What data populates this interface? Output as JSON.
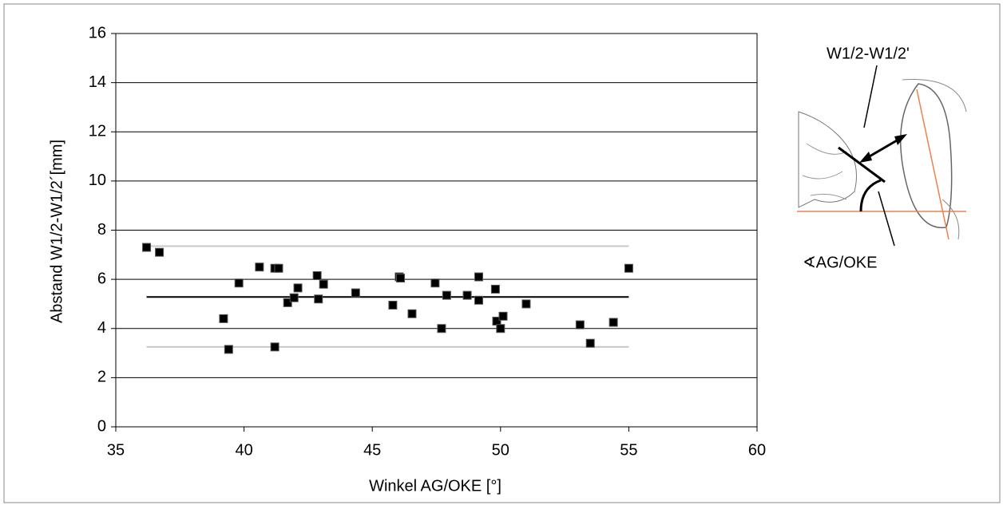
{
  "chart_data": {
    "type": "scatter",
    "x_label": "Winkel AG/OKE [°]",
    "y_label": "Abstand W1/2-W1/2´[mm]",
    "xlim": [
      35,
      60
    ],
    "xticks": [
      35,
      40,
      45,
      50,
      55,
      60
    ],
    "ylim": [
      0,
      16
    ],
    "yticks": [
      0,
      2,
      4,
      6,
      8,
      10,
      12,
      14,
      16
    ],
    "grid": true,
    "series": [
      {
        "color": "#000000",
        "x": [
          36.2,
          36.7,
          39.2,
          39.4,
          39.8,
          40.6,
          41.2,
          41.35,
          41.2,
          41.7,
          41.95,
          42.1,
          42.85,
          42.9,
          43.1,
          44.35,
          45.8,
          46.05,
          46.1,
          46.55,
          47.45,
          47.7,
          47.9,
          48.7,
          49.15,
          49.15,
          49.8,
          49.85,
          50.0,
          50.1,
          51.0,
          53.1,
          53.5,
          54.4,
          55.0
        ],
        "values": [
          7.3,
          7.1,
          4.4,
          3.15,
          5.85,
          6.5,
          6.45,
          6.45,
          3.25,
          5.05,
          5.25,
          5.65,
          6.15,
          5.2,
          5.8,
          5.45,
          4.95,
          6.1,
          6.05,
          4.6,
          5.85,
          4.0,
          5.35,
          5.35,
          6.1,
          5.15,
          5.6,
          4.3,
          4.0,
          4.5,
          5.0,
          4.15,
          3.4,
          4.25,
          6.45
        ]
      }
    ],
    "reference_lines": [
      {
        "value": 5.28,
        "color": "#000000"
      },
      {
        "value": 7.35,
        "color": "#c8c8c8"
      },
      {
        "value": 3.25,
        "color": "#c8c8c8"
      }
    ]
  },
  "inset": {
    "label_distance": "W1/2-W1/2'",
    "label_angle": "∢AG/OKE"
  }
}
